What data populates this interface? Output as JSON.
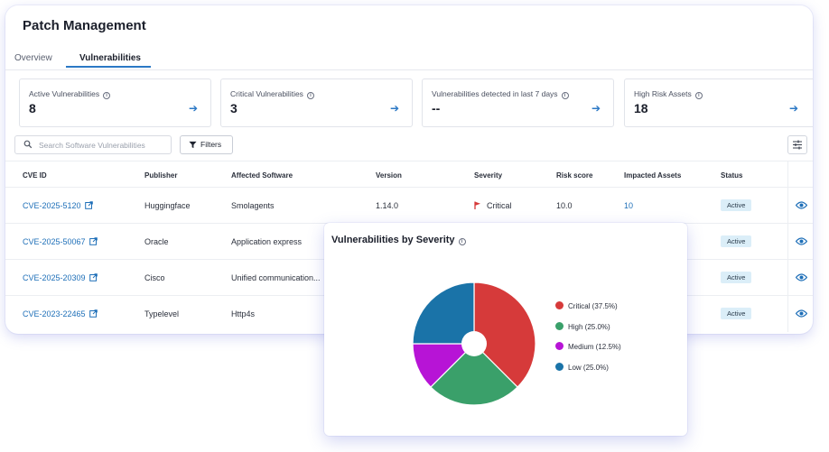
{
  "page": {
    "title": "Patch Management"
  },
  "tabs": [
    {
      "label": "Overview",
      "active": false
    },
    {
      "label": "Vulnerabilities",
      "active": true
    }
  ],
  "stats": [
    {
      "label": "Active Vulnerabilities",
      "value": "8"
    },
    {
      "label": "Critical Vulnerabilities",
      "value": "3"
    },
    {
      "label": "Vulnerabilities detected in last 7 days",
      "value": "--"
    },
    {
      "label": "High Risk Assets",
      "value": "18"
    }
  ],
  "toolbar": {
    "search_placeholder": "Search Software Vulnerabilities",
    "filters_label": "Filters"
  },
  "table": {
    "columns": [
      "CVE ID",
      "Publisher",
      "Affected Software",
      "Version",
      "Severity",
      "Risk score",
      "Impacted Assets",
      "Status"
    ],
    "rows": [
      {
        "cve": "CVE-2025-5120",
        "publisher": "Huggingface",
        "software": "Smolagents",
        "version": "1.14.0",
        "severity": "Critical",
        "risk": "10.0",
        "assets": "10",
        "status": "Active"
      },
      {
        "cve": "CVE-2025-50067",
        "publisher": "Oracle",
        "software": "Application express",
        "version": "",
        "severity": "",
        "risk": "",
        "assets": "",
        "status": "Active"
      },
      {
        "cve": "CVE-2025-20309",
        "publisher": "Cisco",
        "software": "Unified communication...",
        "version": "",
        "severity": "",
        "risk": "",
        "assets": "",
        "status": "Active"
      },
      {
        "cve": "CVE-2023-22465",
        "publisher": "Typelevel",
        "software": "Http4s",
        "version": "",
        "severity": "",
        "risk": "",
        "assets": "",
        "status": "Active"
      }
    ]
  },
  "colors": {
    "accent": "#2b78c5",
    "critical": "#d63a3a",
    "high": "#3aa06a",
    "medium": "#b714d6",
    "low": "#1a73a8"
  },
  "chart_data": {
    "type": "pie",
    "title": "Vulnerabilities by Severity",
    "categories": [
      "Critical",
      "High",
      "Medium",
      "Low"
    ],
    "values": [
      37.5,
      25.0,
      12.5,
      25.0
    ],
    "legend_labels": [
      "Critical (37.5%)",
      "High (25.0%)",
      "Medium (12.5%)",
      "Low (25.0%)"
    ],
    "colors": [
      "#d63a3a",
      "#3aa06a",
      "#b714d6",
      "#1a73a8"
    ],
    "donut": true,
    "legend": "right"
  }
}
